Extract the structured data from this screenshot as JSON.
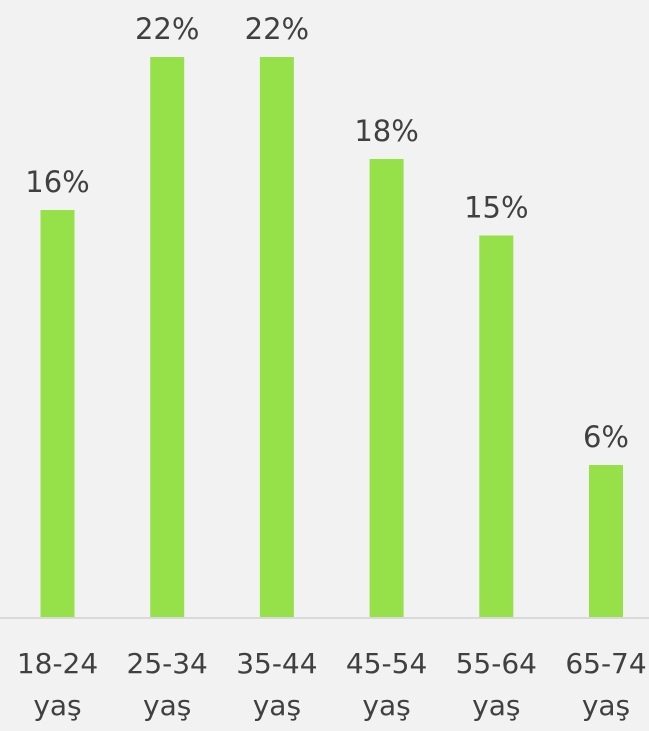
{
  "chart_data": {
    "type": "bar",
    "categories": [
      [
        "18-24",
        "yaş"
      ],
      [
        "25-34",
        "yaş"
      ],
      [
        "35-44",
        "yaş"
      ],
      [
        "45-54",
        "yaş"
      ],
      [
        "55-64",
        "yaş"
      ],
      [
        "65-74",
        "yaş"
      ]
    ],
    "values": [
      16,
      22,
      22,
      18,
      15,
      6
    ],
    "data_labels": [
      "16%",
      "22%",
      "22%",
      "18%",
      "15%",
      "6%"
    ],
    "ylim": [
      0,
      22
    ],
    "grid": false,
    "legend": "none",
    "colors": {
      "bar": "#96e04a",
      "axis": "#d9d9d9",
      "text": "#404040",
      "background": "#f2f2f2"
    }
  }
}
